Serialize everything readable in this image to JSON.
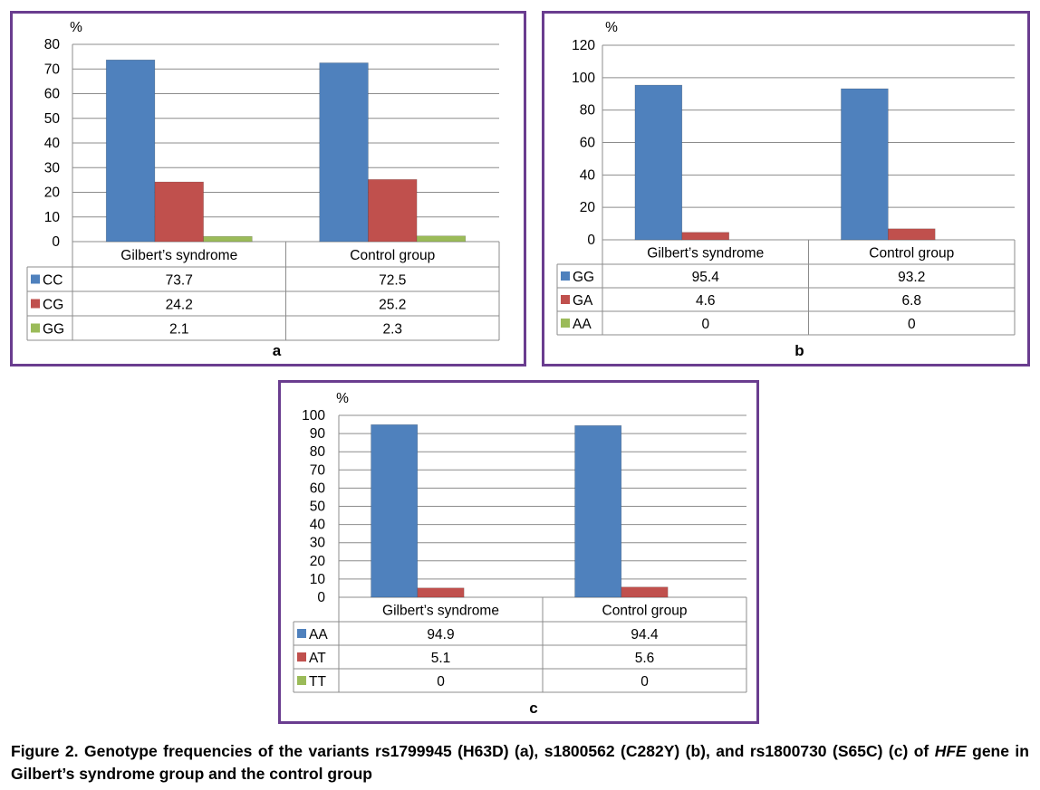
{
  "chart_data": [
    {
      "type": "bar",
      "panel_label": "a",
      "ylabel": "%",
      "ylim": [
        0,
        80
      ],
      "yticks": [
        0,
        10,
        20,
        30,
        40,
        50,
        60,
        70,
        80
      ],
      "categories": [
        "Gilbert’s syndrome",
        "Control group"
      ],
      "series": [
        {
          "name": "CC",
          "values": [
            73.7,
            72.5
          ],
          "labels": [
            "73.7",
            "72.5"
          ],
          "color": "#4f81bd"
        },
        {
          "name": "CG",
          "values": [
            24.2,
            25.2
          ],
          "labels": [
            "24.2",
            "25.2"
          ],
          "color": "#c0504d"
        },
        {
          "name": "GG",
          "values": [
            2.1,
            2.3
          ],
          "labels": [
            "2.1",
            "2.3"
          ],
          "color": "#9bbb59"
        }
      ],
      "grid": true,
      "legend": "data table"
    },
    {
      "type": "bar",
      "panel_label": "b",
      "ylabel": "%",
      "ylim": [
        0,
        120
      ],
      "yticks": [
        0,
        20,
        40,
        60,
        80,
        100,
        120
      ],
      "categories": [
        "Gilbert’s syndrome",
        "Control group"
      ],
      "series": [
        {
          "name": "GG",
          "values": [
            95.4,
            93.2
          ],
          "labels": [
            "95.4",
            "93.2"
          ],
          "color": "#4f81bd"
        },
        {
          "name": "GA",
          "values": [
            4.6,
            6.8
          ],
          "labels": [
            "4.6",
            "6.8"
          ],
          "color": "#c0504d"
        },
        {
          "name": "AA",
          "values": [
            0,
            0
          ],
          "labels": [
            "0",
            "0"
          ],
          "color": "#9bbb59"
        }
      ],
      "grid": true,
      "legend": "data table"
    },
    {
      "type": "bar",
      "panel_label": "c",
      "ylabel": "%",
      "ylim": [
        0,
        100
      ],
      "yticks": [
        0,
        10,
        20,
        30,
        40,
        50,
        60,
        70,
        80,
        90,
        100
      ],
      "categories": [
        "Gilbert’s syndrome",
        "Control group"
      ],
      "series": [
        {
          "name": "AA",
          "values": [
            94.9,
            94.4
          ],
          "labels": [
            "94.9",
            "94.4"
          ],
          "color": "#4f81bd"
        },
        {
          "name": "AT",
          "values": [
            5.1,
            5.6
          ],
          "labels": [
            "5.1",
            "5.6"
          ],
          "color": "#c0504d"
        },
        {
          "name": "TT",
          "values": [
            0,
            0
          ],
          "labels": [
            "0",
            "0"
          ],
          "color": "#9bbb59"
        }
      ],
      "grid": true,
      "legend": "data table"
    }
  ],
  "caption": {
    "part1": "Figure 2. Genotype frequencies of the variants rs1799945 (H63D) (a), s1800562 (C282Y) (b), and rs1800730 (S65C) (c) of ",
    "gene": "HFE",
    "part2": " gene in Gilbert’s syndrome group and the control group"
  }
}
